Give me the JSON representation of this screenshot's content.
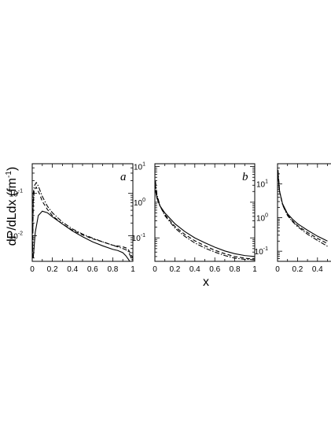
{
  "chart_data": [
    {
      "type": "line",
      "panel_label": "a",
      "y_scale": "log",
      "xlim": [
        0,
        1
      ],
      "ylim": [
        0.0025,
        0.5
      ],
      "x_ticks": [
        "0",
        "0.2",
        "0.4",
        "0.6",
        "0.8",
        "1"
      ],
      "y_ticks": [
        {
          "value": 0.1,
          "base": "10",
          "exp": "-1"
        },
        {
          "value": 0.01,
          "base": "10",
          "exp": "-2"
        }
      ],
      "series": [
        {
          "style": "solid",
          "x": [
            0.01,
            0.03,
            0.06,
            0.1,
            0.15,
            0.2,
            0.3,
            0.4,
            0.5,
            0.6,
            0.7,
            0.8,
            0.85,
            0.9,
            0.93,
            0.96,
            0.98
          ],
          "y": [
            0.003,
            0.012,
            0.03,
            0.038,
            0.035,
            0.028,
            0.019,
            0.013,
            0.0095,
            0.0072,
            0.0058,
            0.0048,
            0.0045,
            0.004,
            0.0034,
            0.0027,
            0.0022
          ]
        },
        {
          "style": "dashed",
          "x": [
            0.003,
            0.01,
            0.02,
            0.04,
            0.07,
            0.1,
            0.15,
            0.2,
            0.3,
            0.4,
            0.5,
            0.6,
            0.7,
            0.8,
            0.9,
            0.95,
            1.0
          ],
          "y": [
            0.003,
            0.06,
            0.12,
            0.14,
            0.1,
            0.065,
            0.042,
            0.03,
            0.019,
            0.0135,
            0.0105,
            0.0085,
            0.0072,
            0.006,
            0.0055,
            0.005,
            0.003
          ]
        },
        {
          "style": "dash-dot",
          "x": [
            0.003,
            0.01,
            0.02,
            0.04,
            0.06,
            0.1,
            0.15,
            0.2,
            0.3,
            0.4,
            0.5,
            0.6,
            0.7,
            0.8,
            0.9,
            0.95,
            1.0
          ],
          "y": [
            0.003,
            0.1,
            0.15,
            0.18,
            0.15,
            0.085,
            0.05,
            0.035,
            0.021,
            0.0145,
            0.011,
            0.0088,
            0.0072,
            0.006,
            0.005,
            0.0045,
            0.0025
          ]
        }
      ]
    },
    {
      "type": "line",
      "panel_label": "b",
      "y_scale": "log",
      "xlim": [
        0,
        1
      ],
      "ylim": [
        0.022,
        12
      ],
      "x_ticks": [
        "0",
        "0.2",
        "0.4",
        "0.6",
        "0.8",
        "1"
      ],
      "y_ticks": [
        {
          "value": 10,
          "base": "10",
          "exp": "1"
        },
        {
          "value": 1,
          "base": "10",
          "exp": "0"
        },
        {
          "value": 0.1,
          "base": "10",
          "exp": "-1"
        }
      ],
      "series": [
        {
          "style": "solid",
          "x": [
            0.005,
            0.02,
            0.05,
            0.1,
            0.2,
            0.3,
            0.4,
            0.5,
            0.6,
            0.7,
            0.8,
            0.9,
            0.95,
            1.0
          ],
          "y": [
            2.2,
            1.3,
            0.8,
            0.5,
            0.25,
            0.15,
            0.1,
            0.073,
            0.055,
            0.043,
            0.036,
            0.032,
            0.031,
            0.03
          ]
        },
        {
          "style": "dashed",
          "x": [
            0.005,
            0.02,
            0.05,
            0.1,
            0.2,
            0.3,
            0.4,
            0.5,
            0.6,
            0.7,
            0.8,
            0.9,
            0.95,
            1.0
          ],
          "y": [
            3.0,
            1.5,
            0.8,
            0.45,
            0.21,
            0.125,
            0.083,
            0.06,
            0.045,
            0.036,
            0.03,
            0.027,
            0.026,
            0.026
          ]
        },
        {
          "style": "dash-dot",
          "x": [
            0.005,
            0.02,
            0.05,
            0.1,
            0.2,
            0.3,
            0.4,
            0.5,
            0.6,
            0.7,
            0.8,
            0.9,
            0.95,
            1.0
          ],
          "y": [
            4.0,
            1.7,
            0.8,
            0.42,
            0.19,
            0.11,
            0.072,
            0.052,
            0.04,
            0.032,
            0.027,
            0.025,
            0.025,
            0.024
          ]
        }
      ]
    },
    {
      "type": "line",
      "panel_label": "",
      "y_scale": "log",
      "xlim": [
        0,
        1
      ],
      "ylim": [
        0.05,
        40
      ],
      "x_ticks": [
        "0",
        "0.2",
        "0.4"
      ],
      "y_ticks": [
        {
          "value": 10,
          "base": "10",
          "exp": "1"
        },
        {
          "value": 1,
          "base": "10",
          "exp": "0"
        },
        {
          "value": 0.1,
          "base": "10",
          "exp": "-1"
        }
      ],
      "series": [
        {
          "style": "solid",
          "x": [
            0.005,
            0.02,
            0.05,
            0.1,
            0.15,
            0.2,
            0.3,
            0.4,
            0.5
          ],
          "y": [
            18,
            6,
            2.6,
            1.3,
            0.9,
            0.66,
            0.42,
            0.28,
            0.2
          ]
        },
        {
          "style": "dashed",
          "x": [
            0.005,
            0.02,
            0.05,
            0.1,
            0.15,
            0.2,
            0.3,
            0.4,
            0.5
          ],
          "y": [
            22,
            6,
            2.5,
            1.2,
            0.8,
            0.58,
            0.36,
            0.24,
            0.17
          ]
        },
        {
          "style": "dash-dot",
          "x": [
            0.005,
            0.02,
            0.05,
            0.1,
            0.15,
            0.2,
            0.3,
            0.4,
            0.5
          ],
          "y": [
            26,
            6.3,
            2.4,
            1.15,
            0.76,
            0.54,
            0.32,
            0.21,
            0.14
          ]
        }
      ]
    }
  ],
  "y_axis_title": {
    "main": "dP/dLdx (fm",
    "exp": "-1",
    "close": ")"
  },
  "x_axis_title": "x"
}
